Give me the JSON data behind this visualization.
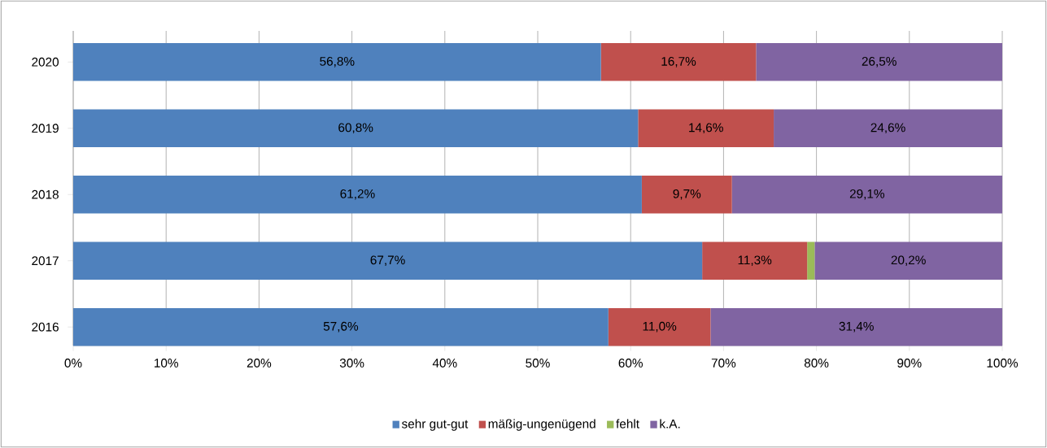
{
  "chart_data": {
    "type": "bar",
    "orientation": "horizontal",
    "stacked": true,
    "categories": [
      "2020",
      "2019",
      "2018",
      "2017",
      "2016"
    ],
    "series": [
      {
        "name": "sehr gut-gut",
        "color": "#4f81bd",
        "values": [
          56.8,
          60.8,
          61.2,
          67.7,
          57.6
        ],
        "value_labels": [
          "56,8%",
          "60,8%",
          "61,2%",
          "67,7%",
          "57,6%"
        ]
      },
      {
        "name": "mäßig-ungenügend",
        "color": "#c0504d",
        "values": [
          16.7,
          14.6,
          9.7,
          11.3,
          11.0
        ],
        "value_labels": [
          "16,7%",
          "14,6%",
          "9,7%",
          "11,3%",
          "11,0%"
        ]
      },
      {
        "name": "fehlt",
        "color": "#9bbb59",
        "values": [
          0,
          0,
          0,
          0.8,
          0
        ],
        "value_labels": [
          null,
          null,
          null,
          null,
          null
        ]
      },
      {
        "name": "k.A.",
        "color": "#8064a2",
        "values": [
          26.5,
          24.6,
          29.1,
          20.2,
          31.4
        ],
        "value_labels": [
          "26,5%",
          "24,6%",
          "29,1%",
          "20,2%",
          "31,4%"
        ]
      }
    ],
    "xlim": [
      0,
      100
    ],
    "xticks": [
      {
        "value": 0,
        "label": "0%"
      },
      {
        "value": 10,
        "label": "10%"
      },
      {
        "value": 20,
        "label": "20%"
      },
      {
        "value": 30,
        "label": "30%"
      },
      {
        "value": 40,
        "label": "40%"
      },
      {
        "value": 50,
        "label": "50%"
      },
      {
        "value": 60,
        "label": "60%"
      },
      {
        "value": 70,
        "label": "70%"
      },
      {
        "value": 80,
        "label": "80%"
      },
      {
        "value": 90,
        "label": "90%"
      },
      {
        "value": 100,
        "label": "100%"
      }
    ],
    "grid": "x",
    "legend": "bottom"
  }
}
